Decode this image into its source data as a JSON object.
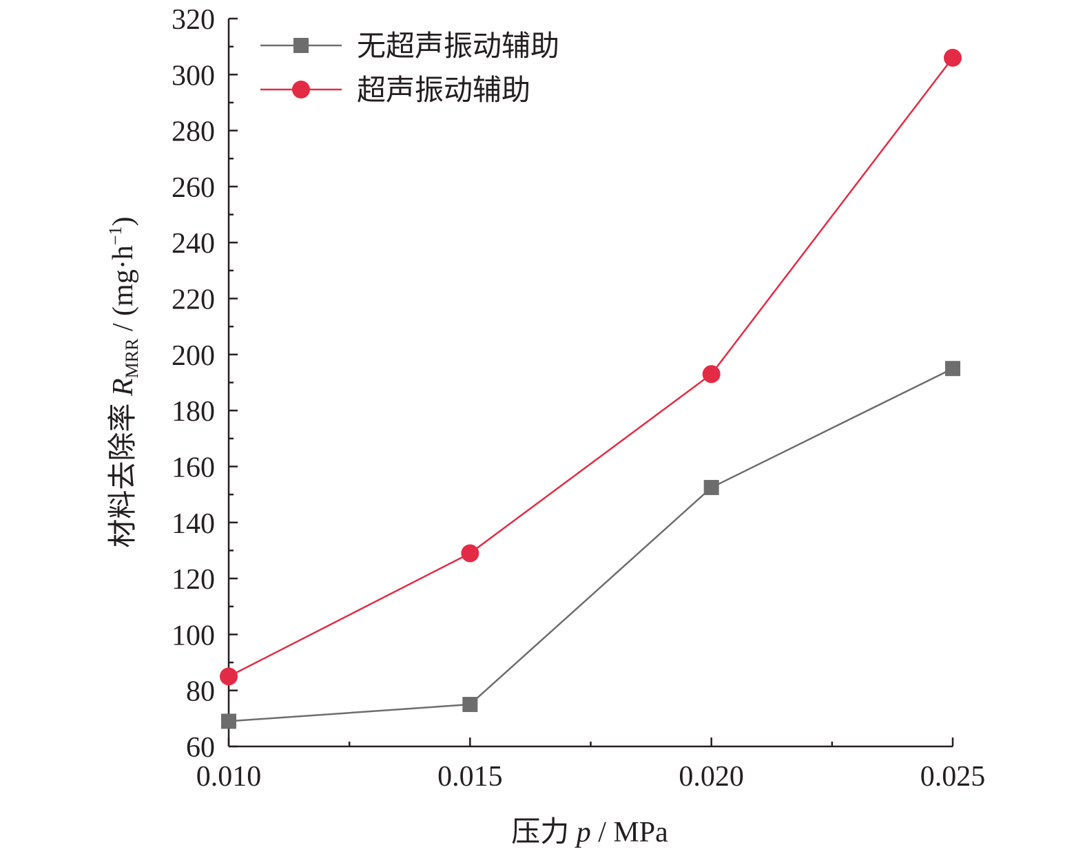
{
  "chart_data": {
    "type": "line",
    "x": [
      0.01,
      0.015,
      0.02,
      0.025
    ],
    "x_tick_labels": [
      "0.010",
      "0.015",
      "0.020",
      "0.025"
    ],
    "xlim": [
      0.01,
      0.025
    ],
    "ylim": [
      60,
      320
    ],
    "y_ticks": [
      60,
      80,
      100,
      120,
      140,
      160,
      180,
      200,
      220,
      240,
      260,
      280,
      300,
      320
    ],
    "grid": false,
    "legend_position": "top-left",
    "xlabel": {
      "prefix": "压力 ",
      "symbol": "p",
      "unit": " / MPa"
    },
    "ylabel": {
      "prefix": "材料去除率 ",
      "symbol": "R",
      "subscript": "MRR",
      "unit_start": " / (mg·h",
      "superscript": "−1",
      "unit_end": ")"
    },
    "series": [
      {
        "name": "无超声振动辅助",
        "marker": "square",
        "color": "#6d6d6d",
        "values": [
          69,
          75,
          152.5,
          195
        ]
      },
      {
        "name": "超声振动辅助",
        "marker": "circle",
        "color": "#e32b45",
        "values": [
          85,
          129,
          193,
          306
        ]
      }
    ]
  }
}
